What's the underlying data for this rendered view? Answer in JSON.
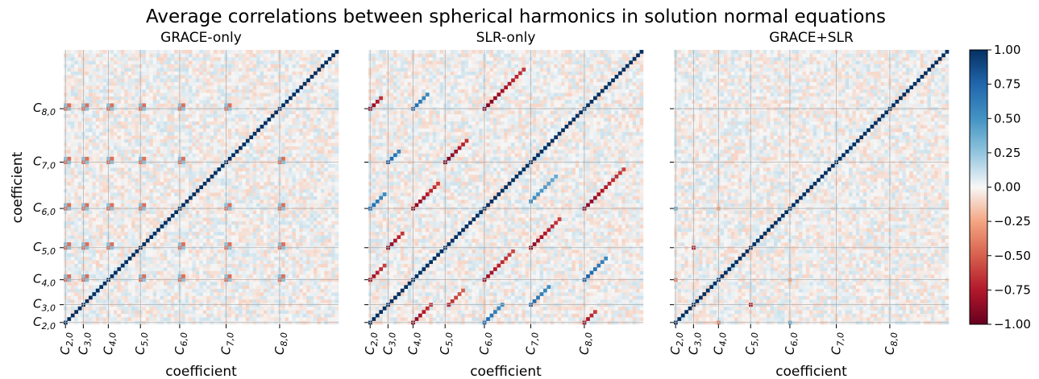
{
  "chart_data": {
    "type": "heatmap",
    "title": "Average correlations between spherical harmonics in solution normal equations",
    "xlabel": "coefficient",
    "ylabel": "coefficient",
    "tick_labels": [
      "C_{2,0}",
      "C_{3,0}",
      "C_{4,0}",
      "C_{5,0}",
      "C_{6,0}",
      "C_{7,0}",
      "C_{8,0}"
    ],
    "tick_positions": [
      0,
      5,
      12,
      21,
      32,
      45,
      60
    ],
    "n_coefficients": 77,
    "colormap": "RdBu",
    "vmin": -1.0,
    "vmax": 1.0,
    "colorbar_ticks": [
      "1.00",
      "0.75",
      "0.50",
      "0.25",
      "0.00",
      "−0.25",
      "−0.50",
      "−0.75",
      "−1.00"
    ],
    "grid": true,
    "panels": [
      {
        "title": "GRACE-only",
        "diagonal": 1.0,
        "features": [
          {
            "kind": "grid-crossings",
            "rows": [
              12,
              21,
              32,
              45,
              60
            ],
            "cols": [
              0,
              5,
              12,
              21,
              32,
              45,
              60
            ],
            "value": -0.45
          }
        ]
      },
      {
        "title": "SLR-only",
        "diagonal": 1.0,
        "features": [
          {
            "kind": "off-diagonal-band",
            "start": [
              0,
              60
            ],
            "length": 4,
            "value": -0.9
          },
          {
            "kind": "off-diagonal-band",
            "start": [
              12,
              60
            ],
            "length": 5,
            "value": 0.75
          },
          {
            "kind": "off-diagonal-band",
            "start": [
              32,
              60
            ],
            "length": 12,
            "value": -0.95
          },
          {
            "kind": "off-diagonal-band",
            "start": [
              5,
              45
            ],
            "length": 4,
            "value": 0.8
          },
          {
            "kind": "off-diagonal-band",
            "start": [
              21,
              45
            ],
            "length": 7,
            "value": -0.95
          },
          {
            "kind": "off-diagonal-band",
            "start": [
              0,
              32
            ],
            "length": 5,
            "value": 0.75
          },
          {
            "kind": "off-diagonal-band",
            "start": [
              12,
              32
            ],
            "length": 8,
            "value": -0.9
          },
          {
            "kind": "off-diagonal-band",
            "start": [
              60,
              32
            ],
            "length": 12,
            "value": -0.9
          },
          {
            "kind": "off-diagonal-band",
            "start": [
              45,
              34
            ],
            "length": 8,
            "value": 0.55
          },
          {
            "kind": "off-diagonal-band",
            "start": [
              5,
              21
            ],
            "length": 5,
            "value": -0.9
          },
          {
            "kind": "off-diagonal-band",
            "start": [
              45,
              21
            ],
            "length": 9,
            "value": -0.9
          },
          {
            "kind": "off-diagonal-band",
            "start": [
              0,
              12
            ],
            "length": 5,
            "value": -0.85
          },
          {
            "kind": "off-diagonal-band",
            "start": [
              32,
              12
            ],
            "length": 9,
            "value": -0.85
          },
          {
            "kind": "off-diagonal-band",
            "start": [
              60,
              12
            ],
            "length": 7,
            "value": 0.8
          },
          {
            "kind": "off-diagonal-band",
            "start": [
              22,
              5
            ],
            "length": 5,
            "value": -0.7
          },
          {
            "kind": "off-diagonal-band",
            "start": [
              45,
              5
            ],
            "length": 6,
            "value": 0.75
          },
          {
            "kind": "off-diagonal-band",
            "start": [
              12,
              0
            ],
            "length": 6,
            "value": -0.9
          },
          {
            "kind": "off-diagonal-band",
            "start": [
              32,
              0
            ],
            "length": 6,
            "value": 0.75
          },
          {
            "kind": "off-diagonal-band",
            "start": [
              60,
              0
            ],
            "length": 4,
            "value": -0.85
          }
        ]
      },
      {
        "title": "GRACE+SLR",
        "diagonal": 1.0,
        "features": [
          {
            "kind": "cell",
            "at": [
              5,
              21
            ],
            "value": -0.75
          },
          {
            "kind": "cell",
            "at": [
              21,
              5
            ],
            "value": -0.75
          },
          {
            "kind": "cell",
            "at": [
              12,
              0
            ],
            "value": -0.35
          },
          {
            "kind": "cell",
            "at": [
              0,
              12
            ],
            "value": -0.35
          },
          {
            "kind": "cell",
            "at": [
              0,
              32
            ],
            "value": 0.35
          },
          {
            "kind": "cell",
            "at": [
              32,
              0
            ],
            "value": 0.35
          },
          {
            "kind": "cell",
            "at": [
              12,
              32
            ],
            "value": -0.25
          },
          {
            "kind": "cell",
            "at": [
              32,
              12
            ],
            "value": -0.25
          }
        ]
      }
    ]
  }
}
